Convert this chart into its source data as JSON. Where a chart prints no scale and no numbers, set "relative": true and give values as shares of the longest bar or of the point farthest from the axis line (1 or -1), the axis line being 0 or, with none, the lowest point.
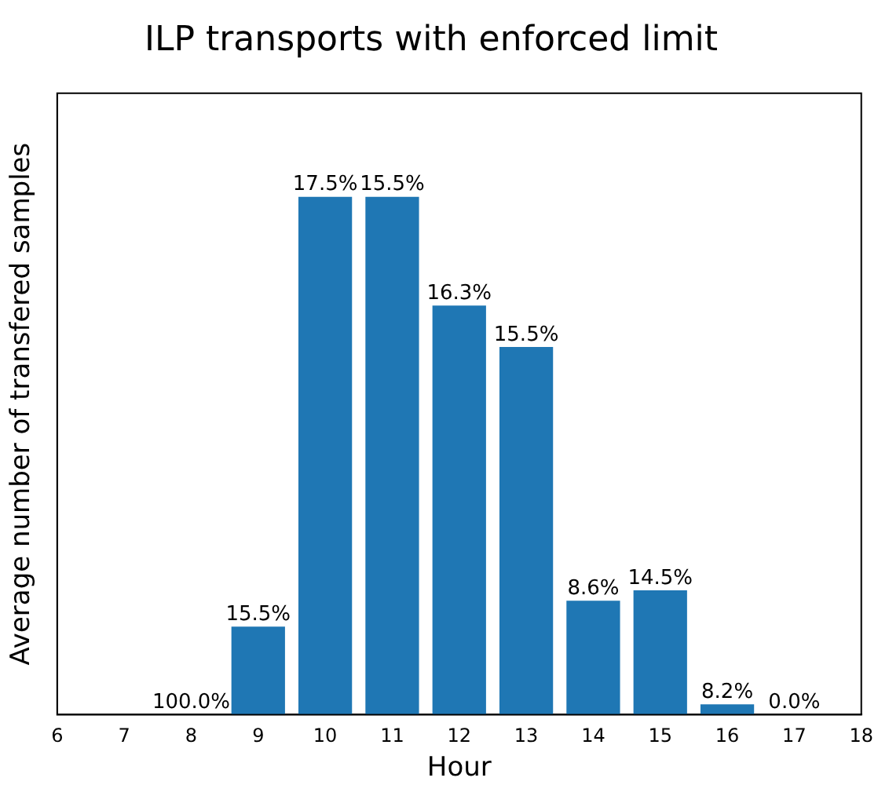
{
  "chart_data": {
    "type": "bar",
    "title": "ILP transports with enforced limit",
    "xlabel": "Hour",
    "ylabel": "Average number of transfered samples",
    "relative": true,
    "x": [
      8,
      9,
      10,
      11,
      12,
      13,
      14,
      15,
      16,
      17
    ],
    "values": [
      0,
      0.17,
      1,
      1,
      0.79,
      0.71,
      0.22,
      0.24,
      0.02,
      0
    ],
    "annotations": [
      {
        "text": "100.0%",
        "x": 8,
        "y": 0
      },
      {
        "text": "15.5%",
        "x": 9,
        "y": 0.17
      },
      {
        "text": "17.5%",
        "x": 10,
        "y": 1
      },
      {
        "text": "15.5%",
        "x": 11,
        "y": 1
      },
      {
        "text": "16.3%",
        "x": 12,
        "y": 0.79
      },
      {
        "text": "15.5%",
        "x": 13,
        "y": 0.71
      },
      {
        "text": "8.6%",
        "x": 14,
        "y": 0.22
      },
      {
        "text": "14.5%",
        "x": 15,
        "y": 0.24
      },
      {
        "text": "8.2%",
        "x": 16,
        "y": 0.02
      },
      {
        "text": "0.0%",
        "x": 17,
        "y": 0
      }
    ],
    "color": "#1f77b4",
    "xlim": [
      6,
      18
    ],
    "xticks": [
      6,
      7,
      8,
      9,
      10,
      11,
      12,
      13,
      14,
      15,
      16,
      17,
      18
    ],
    "grid": false,
    "legend": false
  }
}
